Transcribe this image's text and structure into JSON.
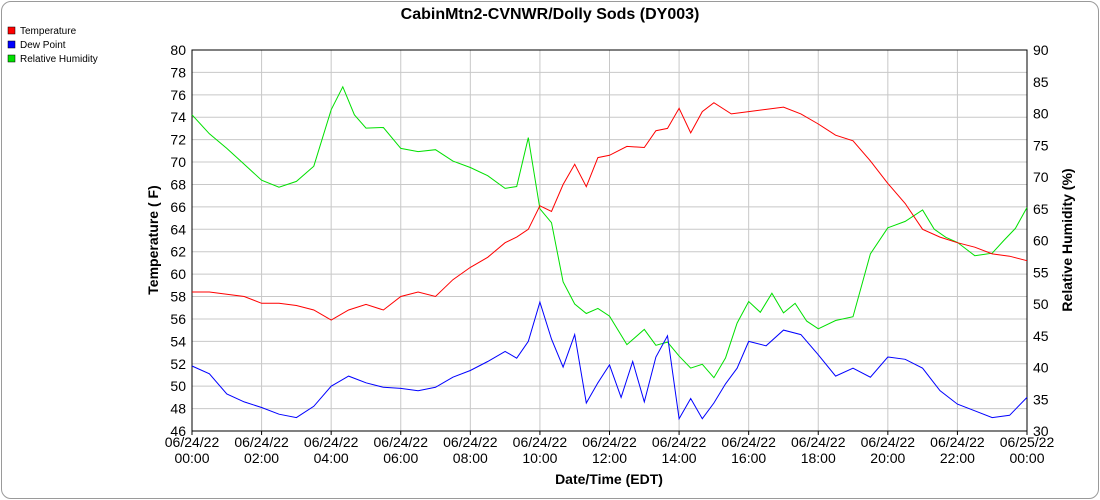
{
  "chart_data": {
    "type": "line",
    "title": "CabinMtn2-CVNWR/Dolly Sods (DY003)",
    "xlabel": "Date/Time (EDT)",
    "ylabel": "Temperature ( F)",
    "y2label": "Relative Humidity (%)",
    "ylim": [
      46,
      80
    ],
    "y2lim": [
      30,
      90
    ],
    "xlim": [
      "06/24/22 00:00",
      "06/25/22 00:00"
    ],
    "x_ticks": [
      {
        "date": "06/24/22",
        "time": "00:00"
      },
      {
        "date": "06/24/22",
        "time": "02:00"
      },
      {
        "date": "06/24/22",
        "time": "04:00"
      },
      {
        "date": "06/24/22",
        "time": "06:00"
      },
      {
        "date": "06/24/22",
        "time": "08:00"
      },
      {
        "date": "06/24/22",
        "time": "10:00"
      },
      {
        "date": "06/24/22",
        "time": "12:00"
      },
      {
        "date": "06/24/22",
        "time": "14:00"
      },
      {
        "date": "06/24/22",
        "time": "16:00"
      },
      {
        "date": "06/24/22",
        "time": "18:00"
      },
      {
        "date": "06/24/22",
        "time": "20:00"
      },
      {
        "date": "06/24/22",
        "time": "22:00"
      },
      {
        "date": "06/25/22",
        "time": "00:00"
      }
    ],
    "y_ticks": [
      46,
      48,
      50,
      52,
      54,
      56,
      58,
      60,
      62,
      64,
      66,
      68,
      70,
      72,
      74,
      76,
      78,
      80
    ],
    "y2_ticks": [
      30,
      35,
      40,
      45,
      50,
      55,
      60,
      65,
      70,
      75,
      80,
      85,
      90
    ],
    "grid": true,
    "legend_position": "top-left",
    "series": [
      {
        "name": "Temperature",
        "axis": "left",
        "color": "#ff0000",
        "x": [
          "06/24/22 00:00",
          "06/24/22 00:30",
          "06/24/22 01:00",
          "06/24/22 01:30",
          "06/24/22 02:00",
          "06/24/22 02:30",
          "06/24/22 03:00",
          "06/24/22 03:30",
          "06/24/22 04:00",
          "06/24/22 04:30",
          "06/24/22 05:00",
          "06/24/22 05:30",
          "06/24/22 06:00",
          "06/24/22 06:30",
          "06/24/22 07:00",
          "06/24/22 07:30",
          "06/24/22 08:00",
          "06/24/22 08:30",
          "06/24/22 09:00",
          "06/24/22 09:20",
          "06/24/22 09:40",
          "06/24/22 10:00",
          "06/24/22 10:20",
          "06/24/22 10:40",
          "06/24/22 11:00",
          "06/24/22 11:20",
          "06/24/22 11:40",
          "06/24/22 12:00",
          "06/24/22 12:30",
          "06/24/22 13:00",
          "06/24/22 13:20",
          "06/24/22 13:40",
          "06/24/22 14:00",
          "06/24/22 14:20",
          "06/24/22 14:40",
          "06/24/22 15:00",
          "06/24/22 15:30",
          "06/24/22 16:00",
          "06/24/22 16:30",
          "06/24/22 17:00",
          "06/24/22 17:30",
          "06/24/22 18:00",
          "06/24/22 18:30",
          "06/24/22 19:00",
          "06/24/22 19:30",
          "06/24/22 20:00",
          "06/24/22 20:30",
          "06/24/22 21:00",
          "06/24/22 21:30",
          "06/24/22 22:00",
          "06/24/22 22:30",
          "06/24/22 23:00",
          "06/24/22 23:30",
          "06/25/22 00:00"
        ],
        "y": [
          58.4,
          58.4,
          58.2,
          58.0,
          57.4,
          57.4,
          57.2,
          56.8,
          55.9,
          56.8,
          57.3,
          56.8,
          58.0,
          58.4,
          58.0,
          59.5,
          60.6,
          61.5,
          62.8,
          63.3,
          64.0,
          66.1,
          65.6,
          68.0,
          69.8,
          67.8,
          70.4,
          70.6,
          71.4,
          71.3,
          72.8,
          73.0,
          74.8,
          72.6,
          74.5,
          75.3,
          74.3,
          74.5,
          74.7,
          74.9,
          74.3,
          73.4,
          72.4,
          71.9,
          70.1,
          68.1,
          66.3,
          64.0,
          63.3,
          62.8,
          62.4,
          61.8,
          61.6,
          61.2
        ]
      },
      {
        "name": "Dew Point",
        "axis": "left",
        "color": "#0000ff",
        "x": [
          "06/24/22 00:00",
          "06/24/22 00:30",
          "06/24/22 01:00",
          "06/24/22 01:30",
          "06/24/22 02:00",
          "06/24/22 02:30",
          "06/24/22 03:00",
          "06/24/22 03:30",
          "06/24/22 04:00",
          "06/24/22 04:30",
          "06/24/22 05:00",
          "06/24/22 05:30",
          "06/24/22 06:00",
          "06/24/22 06:30",
          "06/24/22 07:00",
          "06/24/22 07:30",
          "06/24/22 08:00",
          "06/24/22 08:30",
          "06/24/22 09:00",
          "06/24/22 09:20",
          "06/24/22 09:40",
          "06/24/22 10:00",
          "06/24/22 10:20",
          "06/24/22 10:40",
          "06/24/22 11:00",
          "06/24/22 11:20",
          "06/24/22 11:40",
          "06/24/22 12:00",
          "06/24/22 12:20",
          "06/24/22 12:40",
          "06/24/22 13:00",
          "06/24/22 13:20",
          "06/24/22 13:40",
          "06/24/22 14:00",
          "06/24/22 14:20",
          "06/24/22 14:40",
          "06/24/22 15:00",
          "06/24/22 15:20",
          "06/24/22 15:40",
          "06/24/22 16:00",
          "06/24/22 16:30",
          "06/24/22 17:00",
          "06/24/22 17:30",
          "06/24/22 18:00",
          "06/24/22 18:30",
          "06/24/22 19:00",
          "06/24/22 19:30",
          "06/24/22 20:00",
          "06/24/22 20:30",
          "06/24/22 21:00",
          "06/24/22 21:30",
          "06/24/22 22:00",
          "06/24/22 22:30",
          "06/24/22 23:00",
          "06/24/22 23:30",
          "06/25/22 00:00"
        ],
        "y": [
          51.8,
          51.1,
          49.3,
          48.6,
          48.1,
          47.5,
          47.2,
          48.2,
          50.0,
          50.9,
          50.3,
          49.9,
          49.8,
          49.6,
          49.9,
          50.8,
          51.4,
          52.2,
          53.1,
          52.5,
          54.0,
          57.5,
          54.2,
          51.7,
          54.6,
          48.5,
          50.3,
          51.9,
          49.0,
          52.2,
          48.6,
          52.6,
          54.5,
          47.1,
          48.9,
          47.1,
          48.5,
          50.2,
          51.6,
          54.0,
          53.6,
          55.0,
          54.6,
          52.8,
          50.9,
          51.6,
          50.8,
          52.6,
          52.4,
          51.6,
          49.6,
          48.4,
          47.8,
          47.2,
          47.4,
          49.0
        ]
      },
      {
        "name": "Relative Humidity",
        "axis": "right",
        "color": "#00e000",
        "x": [
          "06/24/22 00:00",
          "06/24/22 00:30",
          "06/24/22 01:00",
          "06/24/22 01:30",
          "06/24/22 02:00",
          "06/24/22 02:30",
          "06/24/22 03:00",
          "06/24/22 03:30",
          "06/24/22 04:00",
          "06/24/22 04:20",
          "06/24/22 04:40",
          "06/24/22 05:00",
          "06/24/22 05:30",
          "06/24/22 06:00",
          "06/24/22 06:30",
          "06/24/22 07:00",
          "06/24/22 07:30",
          "06/24/22 08:00",
          "06/24/22 08:30",
          "06/24/22 09:00",
          "06/24/22 09:20",
          "06/24/22 09:40",
          "06/24/22 10:00",
          "06/24/22 10:20",
          "06/24/22 10:40",
          "06/24/22 11:00",
          "06/24/22 11:20",
          "06/24/22 11:40",
          "06/24/22 12:00",
          "06/24/22 12:30",
          "06/24/22 13:00",
          "06/24/22 13:20",
          "06/24/22 13:40",
          "06/24/22 14:00",
          "06/24/22 14:20",
          "06/24/22 14:40",
          "06/24/22 15:00",
          "06/24/22 15:20",
          "06/24/22 15:40",
          "06/24/22 16:00",
          "06/24/22 16:20",
          "06/24/22 16:40",
          "06/24/22 17:00",
          "06/24/22 17:20",
          "06/24/22 17:40",
          "06/24/22 18:00",
          "06/24/22 18:30",
          "06/24/22 19:00",
          "06/24/22 19:30",
          "06/24/22 20:00",
          "06/24/22 20:30",
          "06/24/22 21:00",
          "06/24/22 21:20",
          "06/24/22 21:40",
          "06/24/22 22:00",
          "06/24/22 22:30",
          "06/24/22 23:00",
          "06/24/22 23:20",
          "06/24/22 23:40",
          "06/25/22 00:00"
        ],
        "y": [
          79.8,
          76.8,
          74.5,
          72.0,
          69.5,
          68.4,
          69.3,
          71.7,
          80.6,
          84.2,
          79.8,
          77.7,
          77.8,
          74.5,
          74.0,
          74.3,
          72.5,
          71.5,
          70.2,
          68.2,
          68.5,
          76.2,
          65.0,
          62.8,
          53.5,
          50.0,
          48.5,
          49.3,
          48.1,
          43.6,
          46.0,
          43.5,
          44.0,
          41.8,
          39.9,
          40.5,
          38.4,
          41.5,
          47.0,
          50.4,
          48.7,
          51.7,
          48.6,
          50.1,
          47.3,
          46.1,
          47.4,
          48.0,
          57.9,
          62.0,
          63.0,
          64.8,
          61.8,
          60.5,
          59.7,
          57.6,
          58.0,
          60.0,
          61.9,
          65.2
        ]
      }
    ]
  }
}
